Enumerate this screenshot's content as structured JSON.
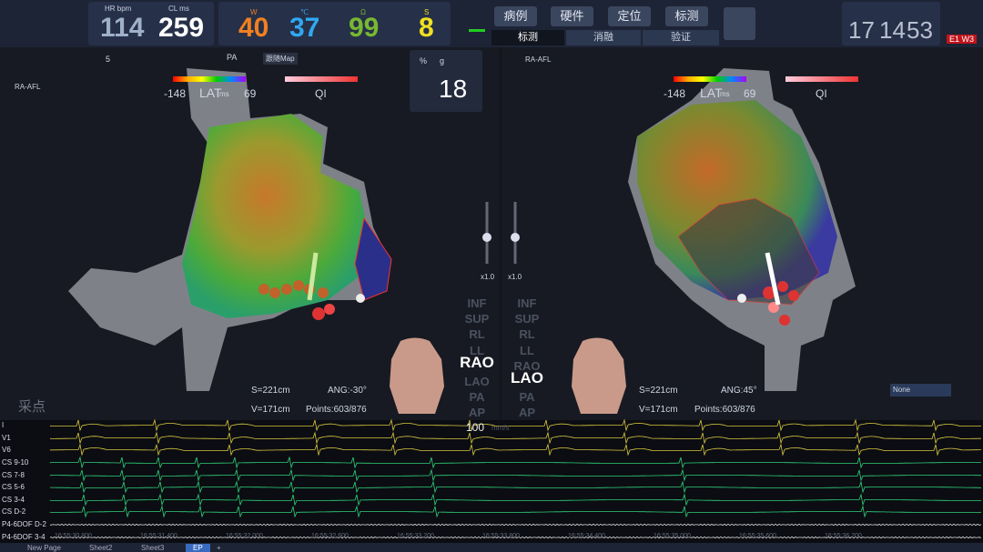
{
  "top_bar": {
    "vitals": [
      {
        "label": "HR bpm",
        "value": "114"
      },
      {
        "label": "CL ms",
        "value": "259"
      }
    ],
    "ablation": [
      {
        "label": "W",
        "value": "40"
      },
      {
        "label": "℃",
        "value": "37"
      },
      {
        "label": "Ω",
        "value": "99"
      },
      {
        "label": "S",
        "value": "8"
      }
    ],
    "buttons": [
      "病例",
      "硬件",
      "定位",
      "标测"
    ],
    "tabs": [
      "标测",
      "消融",
      "验证"
    ],
    "clock": [
      "17",
      "14",
      "53"
    ],
    "status": "E1 W3"
  },
  "left_view": {
    "toolbar_value": "5",
    "projection": "PA",
    "follow": "跟随Map",
    "map_name": "RA-AFL",
    "lat_min": "-148",
    "lat_label": "LAT",
    "lat_unit": "ms",
    "lat_max": "69",
    "qi": "QI",
    "surface": "S",
    "surface_value": "=221cm",
    "volume": "V",
    "volume_value": "=171cm",
    "angle": "ANG:-30°",
    "points": "Points:603/876",
    "collect": "采点"
  },
  "force_panel": {
    "percent": "%",
    "g": "g",
    "value": "18"
  },
  "right_view": {
    "map_name": "RA-AFL",
    "lat_min": "-148",
    "lat_label": "LAT",
    "lat_unit": "ms",
    "lat_max": "69",
    "qi": "QI",
    "surface": "S",
    "surface_value": "=221cm",
    "volume": "V",
    "volume_value": "=171cm",
    "angle": "ANG:45°",
    "points": "Points:603/876",
    "dropdown": "None"
  },
  "view_controls": {
    "zoom_left": "x1.0",
    "zoom_right": "x1.0",
    "left_views": [
      "INF",
      "SUP",
      "RL",
      "LL",
      "RAO",
      "LAO",
      "PA",
      "AP"
    ],
    "left_active": "RAO",
    "right_views": [
      "INF",
      "SUP",
      "RL",
      "LL",
      "RAO",
      "LAO",
      "PA",
      "AP"
    ],
    "right_active": "LAO"
  },
  "ecg": {
    "channels": [
      "I",
      "V1",
      "V6",
      "CS 9-10",
      "CS 7-8",
      "CS 5-6",
      "CS 3-4",
      "CS D-2",
      "P4-6DOF D-2",
      "P4-6DOF 3-4"
    ],
    "speed": "100",
    "speed_unit": "mm/s",
    "times": [
      "16:55:30.800",
      "16:55:31.400",
      "16:55:32.000",
      "16:55:32.600",
      "16:55:33.200",
      "16:55:33.800",
      "16:55:34.400",
      "16:55:35.000",
      "16:55:35.600",
      "16:55:36.200"
    ]
  },
  "bottom_tabs": [
    "New Page",
    "Sheet2",
    "Sheet3",
    "EP",
    "+"
  ]
}
